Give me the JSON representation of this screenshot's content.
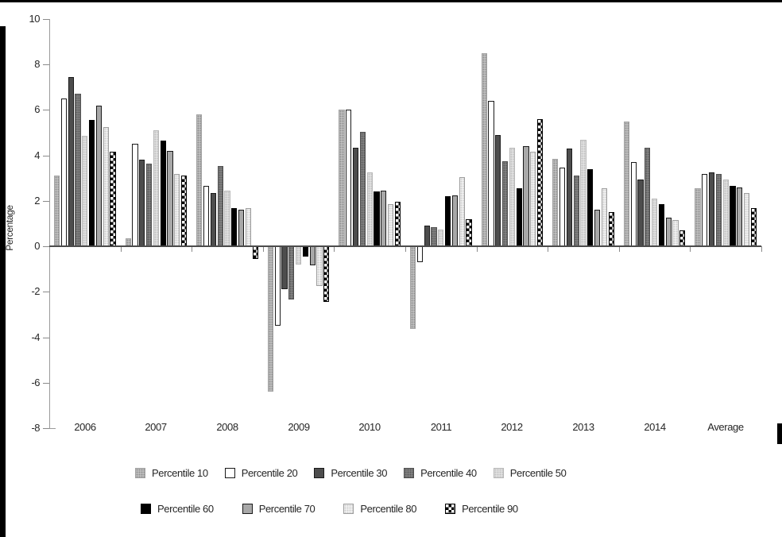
{
  "window": {
    "background": "#ffffff",
    "edge_color": "#000000"
  },
  "chart_data": {
    "type": "bar",
    "title": "",
    "xlabel": "",
    "ylabel": "Percentage",
    "ylim": [
      -8,
      10
    ],
    "yticks": [
      10,
      8,
      6,
      4,
      2,
      0,
      -2,
      -4,
      -6,
      -8
    ],
    "grid": false,
    "legend_position": "bottom",
    "categories": [
      "2006",
      "2007",
      "2008",
      "2009",
      "2010",
      "2011",
      "2012",
      "2013",
      "2014",
      "Average"
    ],
    "series": [
      {
        "name": "Percentile 10",
        "pattern": "dots",
        "fill": "#c6c6c6",
        "dot": "#8e8e8e",
        "border": "#a2a2a2",
        "values": [
          3.1,
          0.35,
          5.8,
          -6.4,
          6.0,
          -3.65,
          8.5,
          3.85,
          5.5,
          2.55
        ]
      },
      {
        "name": "Percentile 20",
        "pattern": "solid",
        "fill": "#ffffff",
        "border": "#1a1a1a",
        "values": [
          6.5,
          4.5,
          2.65,
          -3.5,
          6.0,
          -0.7,
          6.4,
          3.45,
          3.7,
          3.2
        ]
      },
      {
        "name": "Percentile 30",
        "pattern": "solid",
        "fill": "#4d4d4d",
        "border": "#1a1a1a",
        "values": [
          7.45,
          3.8,
          2.35,
          -1.9,
          4.35,
          0.9,
          4.9,
          4.3,
          2.95,
          3.25
        ]
      },
      {
        "name": "Percentile 40",
        "pattern": "dots",
        "fill": "#878787",
        "dot": "#5a5a5a",
        "border": "#4f4f4f",
        "values": [
          6.7,
          3.65,
          3.55,
          -2.35,
          5.05,
          0.85,
          3.75,
          3.1,
          4.35,
          3.2
        ]
      },
      {
        "name": "Percentile 50",
        "pattern": "dots",
        "fill": "#e6e6e6",
        "dot": "#c0c0c0",
        "border": "#b8b8b8",
        "values": [
          4.85,
          5.1,
          2.45,
          -0.8,
          3.25,
          0.75,
          4.35,
          4.7,
          2.1,
          2.95
        ]
      },
      {
        "name": "Percentile 60",
        "pattern": "solid",
        "fill": "#000000",
        "border": "#000000",
        "values": [
          5.55,
          4.65,
          1.7,
          -0.45,
          2.4,
          2.2,
          2.55,
          3.4,
          1.85,
          2.65
        ]
      },
      {
        "name": "Percentile 70",
        "pattern": "solid",
        "fill": "#a8a8a8",
        "border": "#1a1a1a",
        "values": [
          6.2,
          4.2,
          1.6,
          -0.85,
          2.45,
          2.25,
          4.4,
          1.6,
          1.25,
          2.6
        ]
      },
      {
        "name": "Percentile 80",
        "pattern": "dots",
        "fill": "#f6f6f6",
        "dot": "#cdcdcd",
        "border": "#9e9e9e",
        "values": [
          5.25,
          3.2,
          1.7,
          -1.75,
          1.85,
          3.05,
          4.15,
          2.55,
          1.15,
          2.35
        ]
      },
      {
        "name": "Percentile 90",
        "pattern": "checker",
        "fill": "#000000",
        "alt": "#ffffff",
        "border": "#000000",
        "values": [
          4.15,
          3.1,
          -0.55,
          -2.45,
          1.95,
          1.2,
          5.6,
          1.5,
          0.7,
          1.7
        ]
      }
    ]
  },
  "legend": {
    "rows": [
      [
        0,
        1,
        2,
        3,
        4
      ],
      [
        5,
        6,
        7,
        8
      ]
    ]
  }
}
